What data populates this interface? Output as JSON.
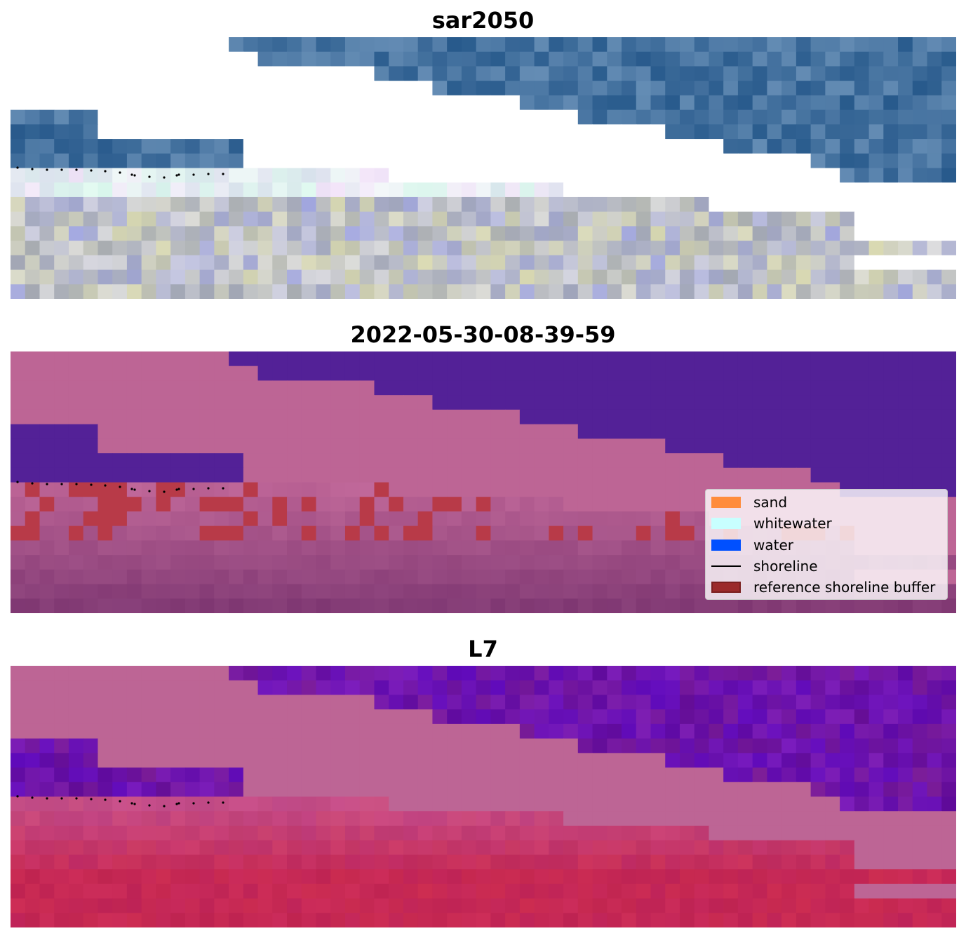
{
  "panels": [
    {
      "title": "sar2050",
      "style": "rgb"
    },
    {
      "title": "2022-05-30-08-39-59",
      "style": "classified"
    },
    {
      "title": "L7",
      "style": "ndwi"
    }
  ],
  "legend": {
    "items": [
      {
        "label": "sand",
        "color": "#ff8c3c",
        "kind": "patch"
      },
      {
        "label": "whitewater",
        "color": "#c8ffff",
        "kind": "patch"
      },
      {
        "label": "water",
        "color": "#0050ff",
        "kind": "patch"
      },
      {
        "label": "shoreline",
        "color": "#000000",
        "kind": "line"
      },
      {
        "label": "reference shoreline buffer",
        "color": "#9b2a2a",
        "kind": "patch"
      }
    ]
  },
  "colors": {
    "masked": "#ffffff",
    "masked_overlay": "#bd6595",
    "water_class": "#532197",
    "buffer_red": "#b83a48",
    "ndwi_high": "#6d0fa8",
    "ndwi_low": "#c0284f",
    "shoreline_points": "#000000"
  }
}
